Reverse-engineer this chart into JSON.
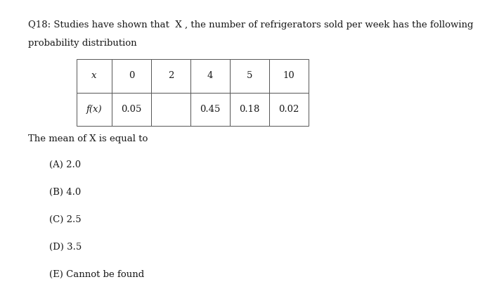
{
  "title_line1": "Q18: Studies have shown that  X , the number of refrigerators sold per week has the following",
  "title_line2": "probability distribution",
  "table_headers": [
    "x",
    "0",
    "2",
    "4",
    "5",
    "10"
  ],
  "table_row_label": "f(x)",
  "table_row_values": [
    "0.05",
    "",
    "0.45",
    "0.18",
    "0.02"
  ],
  "body_text": "The mean of X is equal to",
  "options": [
    "(A) 2.0",
    "(B) 4.0",
    "(C) 2.5",
    "(D) 3.5",
    "(E) Cannot be found"
  ],
  "bg_color": "#ffffff",
  "text_color": "#1a1a1a",
  "font_size_main": 9.5,
  "font_size_table": 9.5,
  "font_size_options": 9.5
}
